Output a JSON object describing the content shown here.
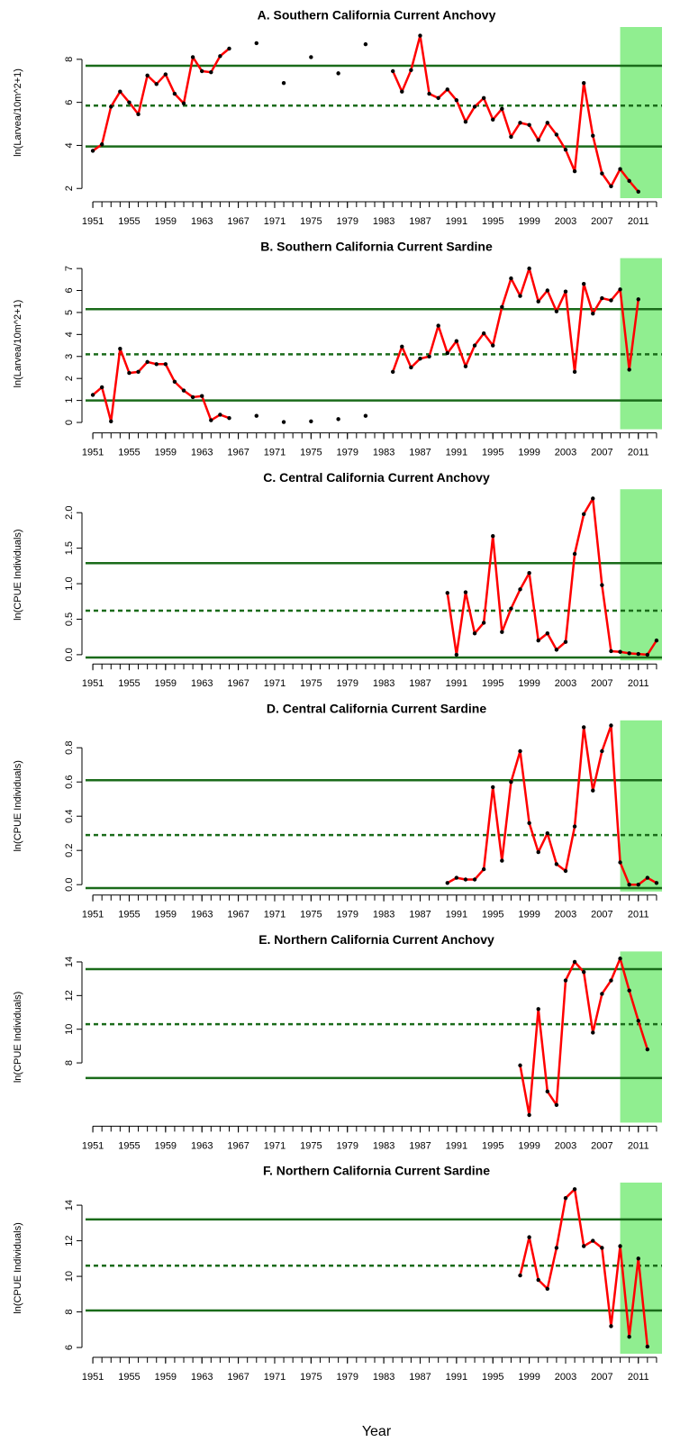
{
  "xlabel": "Year",
  "chart_data": [
    {
      "type": "line",
      "title": "A. Southern California Current Anchovy",
      "ylabel": "ln(Larvea/10m^2+1)",
      "x": [
        1951,
        1952,
        1953,
        1954,
        1955,
        1956,
        1957,
        1958,
        1959,
        1960,
        1961,
        1962,
        1963,
        1964,
        1965,
        1966,
        1967,
        1968,
        1969,
        1970,
        1971,
        1972,
        1973,
        1974,
        1975,
        1976,
        1977,
        1978,
        1979,
        1980,
        1981,
        1982,
        1983,
        1984,
        1985,
        1986,
        1987,
        1988,
        1989,
        1990,
        1991,
        1992,
        1993,
        1994,
        1995,
        1996,
        1997,
        1998,
        1999,
        2000,
        2001,
        2002,
        2003,
        2004,
        2005,
        2006,
        2007,
        2008,
        2009,
        2010,
        2011
      ],
      "values": [
        3.75,
        4.05,
        5.8,
        6.5,
        6.0,
        5.45,
        7.25,
        6.85,
        7.3,
        6.4,
        5.95,
        8.1,
        7.45,
        7.4,
        8.15,
        8.5,
        null,
        null,
        8.75,
        null,
        null,
        6.9,
        null,
        null,
        8.1,
        null,
        null,
        7.35,
        null,
        null,
        8.7,
        null,
        null,
        7.45,
        6.5,
        7.5,
        9.1,
        6.4,
        6.2,
        6.6,
        6.1,
        5.1,
        5.8,
        6.2,
        5.2,
        5.7,
        4.4,
        5.05,
        4.95,
        4.25,
        5.05,
        4.5,
        3.8,
        2.8,
        6.9,
        4.45,
        2.7,
        2.1,
        2.9,
        2.35,
        1.85
      ],
      "line_color": "#ff0000",
      "point_color": "#000000",
      "hlines": [
        {
          "value": 7.7,
          "dashed": false
        },
        {
          "value": 5.85,
          "dashed": true
        },
        {
          "value": 3.95,
          "dashed": false
        }
      ],
      "hline_color": "#1a6b1a",
      "shade_x": [
        2009,
        2013.6
      ],
      "shade_color": "#90ee90",
      "xlim": [
        1950.2,
        2013.6
      ],
      "ylim": [
        1.55,
        9.5
      ],
      "yticks": [
        2,
        4,
        6,
        8
      ],
      "xticks": [
        1951,
        1955,
        1959,
        1963,
        1967,
        1971,
        1975,
        1979,
        1983,
        1987,
        1991,
        1995,
        1999,
        2003,
        2007,
        2011
      ],
      "xminorticks": [
        1951,
        1952,
        1953,
        1954,
        1955,
        1956,
        1957,
        1958,
        1959,
        1960,
        1961,
        1962,
        1963,
        1964,
        1965,
        1966,
        1967,
        1968,
        1969,
        1970,
        1971,
        1972,
        1973,
        1974,
        1975,
        1976,
        1977,
        1978,
        1979,
        1980,
        1981,
        1982,
        1983,
        1984,
        1985,
        1986,
        1987,
        1988,
        1989,
        1990,
        1991,
        1992,
        1993,
        1994,
        1995,
        1996,
        1997,
        1998,
        1999,
        2000,
        2001,
        2002,
        2003,
        2004,
        2005,
        2006,
        2007,
        2008,
        2009,
        2010,
        2011,
        2012,
        2013
      ]
    },
    {
      "type": "line",
      "title": "B. Southern California Current Sardine",
      "ylabel": "ln(Larvea/10m^2+1)",
      "x": [
        1951,
        1952,
        1953,
        1954,
        1955,
        1956,
        1957,
        1958,
        1959,
        1960,
        1961,
        1962,
        1963,
        1964,
        1965,
        1966,
        1967,
        1968,
        1969,
        1970,
        1971,
        1972,
        1973,
        1974,
        1975,
        1976,
        1977,
        1978,
        1979,
        1980,
        1981,
        1982,
        1983,
        1984,
        1985,
        1986,
        1987,
        1988,
        1989,
        1990,
        1991,
        1992,
        1993,
        1994,
        1995,
        1996,
        1997,
        1998,
        1999,
        2000,
        2001,
        2002,
        2003,
        2004,
        2005,
        2006,
        2007,
        2008,
        2009,
        2010,
        2011
      ],
      "values": [
        1.25,
        1.6,
        0.05,
        3.35,
        2.25,
        2.3,
        2.75,
        2.65,
        2.65,
        1.85,
        1.45,
        1.15,
        1.2,
        0.1,
        0.35,
        0.2,
        null,
        null,
        0.3,
        null,
        null,
        0.02,
        null,
        null,
        0.05,
        null,
        null,
        0.15,
        null,
        null,
        0.3,
        null,
        null,
        2.3,
        3.45,
        2.5,
        2.9,
        3.0,
        4.4,
        3.15,
        3.7,
        2.55,
        3.5,
        4.05,
        3.5,
        5.25,
        6.55,
        5.75,
        7.0,
        5.5,
        6.0,
        5.05,
        5.95,
        2.3,
        6.3,
        4.95,
        5.65,
        5.55,
        6.05,
        2.4,
        5.6
      ],
      "line_color": "#ff0000",
      "point_color": "#000000",
      "hlines": [
        {
          "value": 5.15,
          "dashed": false
        },
        {
          "value": 3.1,
          "dashed": true
        },
        {
          "value": 1.0,
          "dashed": false
        }
      ],
      "hline_color": "#1a6b1a",
      "shade_x": [
        2009,
        2013.6
      ],
      "shade_color": "#90ee90",
      "xlim": [
        1950.2,
        2013.6
      ],
      "ylim": [
        -0.31,
        7.47
      ],
      "yticks": [
        0,
        1,
        2,
        3,
        4,
        5,
        6,
        7
      ],
      "xticks": [
        1951,
        1955,
        1959,
        1963,
        1967,
        1971,
        1975,
        1979,
        1983,
        1987,
        1991,
        1995,
        1999,
        2003,
        2007,
        2011
      ],
      "xminorticks": [
        1951,
        1952,
        1953,
        1954,
        1955,
        1956,
        1957,
        1958,
        1959,
        1960,
        1961,
        1962,
        1963,
        1964,
        1965,
        1966,
        1967,
        1968,
        1969,
        1970,
        1971,
        1972,
        1973,
        1974,
        1975,
        1976,
        1977,
        1978,
        1979,
        1980,
        1981,
        1982,
        1983,
        1984,
        1985,
        1986,
        1987,
        1988,
        1989,
        1990,
        1991,
        1992,
        1993,
        1994,
        1995,
        1996,
        1997,
        1998,
        1999,
        2000,
        2001,
        2002,
        2003,
        2004,
        2005,
        2006,
        2007,
        2008,
        2009,
        2010,
        2011,
        2012,
        2013
      ]
    },
    {
      "type": "line",
      "title": "C. Central California Current Anchovy",
      "ylabel": "ln(CPUE Individuals)",
      "x": [
        1990,
        1991,
        1992,
        1993,
        1994,
        1995,
        1996,
        1997,
        1998,
        1999,
        2000,
        2001,
        2002,
        2003,
        2004,
        2005,
        2006,
        2007,
        2008,
        2009,
        2010,
        2011,
        2012,
        2013
      ],
      "values": [
        0.87,
        0.0,
        0.88,
        0.3,
        0.45,
        1.67,
        0.32,
        0.65,
        0.92,
        1.15,
        0.2,
        0.3,
        0.07,
        0.18,
        1.42,
        1.98,
        2.2,
        0.98,
        0.05,
        0.04,
        0.02,
        0.01,
        0.0,
        0.2
      ],
      "line_color": "#ff0000",
      "point_color": "#000000",
      "hlines": [
        {
          "value": 1.29,
          "dashed": false
        },
        {
          "value": 0.62,
          "dashed": true
        },
        {
          "value": -0.04,
          "dashed": false
        }
      ],
      "hline_color": "#1a6b1a",
      "shade_x": [
        2009,
        2013.6
      ],
      "shade_color": "#90ee90",
      "xlim": [
        1950.2,
        2013.6
      ],
      "ylim": [
        -0.08,
        2.33
      ],
      "yticks": [
        {
          "value": 0,
          "label": "0.0"
        },
        0.5,
        {
          "value": 1,
          "label": "1.0"
        },
        1.5,
        {
          "value": 2,
          "label": "2.0"
        }
      ],
      "xticks": [
        1951,
        1955,
        1959,
        1963,
        1967,
        1971,
        1975,
        1979,
        1983,
        1987,
        1991,
        1995,
        1999,
        2003,
        2007,
        2011
      ],
      "xminorticks": [
        1951,
        1952,
        1953,
        1954,
        1955,
        1956,
        1957,
        1958,
        1959,
        1960,
        1961,
        1962,
        1963,
        1964,
        1965,
        1966,
        1967,
        1968,
        1969,
        1970,
        1971,
        1972,
        1973,
        1974,
        1975,
        1976,
        1977,
        1978,
        1979,
        1980,
        1981,
        1982,
        1983,
        1984,
        1985,
        1986,
        1987,
        1988,
        1989,
        1990,
        1991,
        1992,
        1993,
        1994,
        1995,
        1996,
        1997,
        1998,
        1999,
        2000,
        2001,
        2002,
        2003,
        2004,
        2005,
        2006,
        2007,
        2008,
        2009,
        2010,
        2011,
        2012,
        2013
      ]
    },
    {
      "type": "line",
      "title": "D. Central California Current Sardine",
      "ylabel": "ln(CPUE Individuals)",
      "x": [
        1990,
        1991,
        1992,
        1993,
        1994,
        1995,
        1996,
        1997,
        1998,
        1999,
        2000,
        2001,
        2002,
        2003,
        2004,
        2005,
        2006,
        2007,
        2008,
        2009,
        2010,
        2011,
        2012,
        2013
      ],
      "values": [
        0.01,
        0.04,
        0.03,
        0.03,
        0.09,
        0.57,
        0.14,
        0.6,
        0.78,
        0.36,
        0.19,
        0.3,
        0.12,
        0.08,
        0.34,
        0.92,
        0.55,
        0.78,
        0.93,
        0.13,
        0.0,
        0.0,
        0.04,
        0.01
      ],
      "line_color": "#ff0000",
      "point_color": "#000000",
      "hlines": [
        {
          "value": 0.61,
          "dashed": false
        },
        {
          "value": 0.29,
          "dashed": true
        },
        {
          "value": -0.02,
          "dashed": false
        }
      ],
      "hline_color": "#1a6b1a",
      "shade_x": [
        2009,
        2013.6
      ],
      "shade_color": "#90ee90",
      "xlim": [
        1950.2,
        2013.6
      ],
      "ylim": [
        -0.04,
        0.96
      ],
      "yticks": [
        {
          "value": 0,
          "label": "0.0"
        },
        0.2,
        0.4,
        0.6,
        0.8
      ],
      "xticks": [
        1951,
        1955,
        1959,
        1963,
        1967,
        1971,
        1975,
        1979,
        1983,
        1987,
        1991,
        1995,
        1999,
        2003,
        2007,
        2011
      ],
      "xminorticks": [
        1951,
        1952,
        1953,
        1954,
        1955,
        1956,
        1957,
        1958,
        1959,
        1960,
        1961,
        1962,
        1963,
        1964,
        1965,
        1966,
        1967,
        1968,
        1969,
        1970,
        1971,
        1972,
        1973,
        1974,
        1975,
        1976,
        1977,
        1978,
        1979,
        1980,
        1981,
        1982,
        1983,
        1984,
        1985,
        1986,
        1987,
        1988,
        1989,
        1990,
        1991,
        1992,
        1993,
        1994,
        1995,
        1996,
        1997,
        1998,
        1999,
        2000,
        2001,
        2002,
        2003,
        2004,
        2005,
        2006,
        2007,
        2008,
        2009,
        2010,
        2011,
        2012,
        2013
      ]
    },
    {
      "type": "line",
      "title": "E. Northern California Current Anchovy",
      "ylabel": "ln(CPUE Individuals)",
      "x": [
        1998,
        1999,
        2000,
        2001,
        2002,
        2003,
        2004,
        2005,
        2006,
        2007,
        2008,
        2009,
        2010,
        2011,
        2012
      ],
      "values": [
        7.85,
        4.9,
        11.2,
        6.3,
        5.5,
        12.9,
        14.0,
        13.4,
        9.8,
        12.1,
        12.9,
        14.2,
        12.3,
        10.5,
        8.8
      ],
      "line_color": "#ff0000",
      "point_color": "#000000",
      "hlines": [
        {
          "value": 13.57,
          "dashed": false
        },
        {
          "value": 10.3,
          "dashed": true
        },
        {
          "value": 7.1,
          "dashed": false
        }
      ],
      "hline_color": "#1a6b1a",
      "shade_x": [
        2009,
        2013.6
      ],
      "shade_color": "#90ee90",
      "xlim": [
        1950.2,
        2013.6
      ],
      "ylim": [
        4.45,
        14.62
      ],
      "yticks": [
        8,
        10,
        12,
        14
      ],
      "xticks": [
        1951,
        1955,
        1959,
        1963,
        1967,
        1971,
        1975,
        1979,
        1983,
        1987,
        1991,
        1995,
        1999,
        2003,
        2007,
        2011
      ],
      "xminorticks": [
        1951,
        1952,
        1953,
        1954,
        1955,
        1956,
        1957,
        1958,
        1959,
        1960,
        1961,
        1962,
        1963,
        1964,
        1965,
        1966,
        1967,
        1968,
        1969,
        1970,
        1971,
        1972,
        1973,
        1974,
        1975,
        1976,
        1977,
        1978,
        1979,
        1980,
        1981,
        1982,
        1983,
        1984,
        1985,
        1986,
        1987,
        1988,
        1989,
        1990,
        1991,
        1992,
        1993,
        1994,
        1995,
        1996,
        1997,
        1998,
        1999,
        2000,
        2001,
        2002,
        2003,
        2004,
        2005,
        2006,
        2007,
        2008,
        2009,
        2010,
        2011,
        2012,
        2013
      ]
    },
    {
      "type": "line",
      "title": "F. Northern California Current Sardine",
      "ylabel": "ln(CPUE Individuals)",
      "x": [
        1998,
        1999,
        2000,
        2001,
        2002,
        2003,
        2004,
        2005,
        2006,
        2007,
        2008,
        2009,
        2010,
        2011,
        2012
      ],
      "values": [
        10.05,
        12.2,
        9.8,
        9.3,
        11.6,
        14.4,
        14.9,
        11.7,
        12.0,
        11.6,
        7.2,
        11.7,
        6.6,
        11.0,
        6.05
      ],
      "line_color": "#ff0000",
      "point_color": "#000000",
      "hlines": [
        {
          "value": 13.2,
          "dashed": false
        },
        {
          "value": 10.6,
          "dashed": true
        },
        {
          "value": 8.08,
          "dashed": false
        }
      ],
      "hline_color": "#1a6b1a",
      "shade_x": [
        2009,
        2013.6
      ],
      "shade_color": "#90ee90",
      "xlim": [
        1950.2,
        2013.6
      ],
      "ylim": [
        5.65,
        15.27
      ],
      "yticks": [
        6,
        8,
        10,
        12,
        14
      ],
      "xticks": [
        1951,
        1955,
        1959,
        1963,
        1967,
        1971,
        1975,
        1979,
        1983,
        1987,
        1991,
        1995,
        1999,
        2003,
        2007,
        2011
      ],
      "xminorticks": [
        1951,
        1952,
        1953,
        1954,
        1955,
        1956,
        1957,
        1958,
        1959,
        1960,
        1961,
        1962,
        1963,
        1964,
        1965,
        1966,
        1967,
        1968,
        1969,
        1970,
        1971,
        1972,
        1973,
        1974,
        1975,
        1976,
        1977,
        1978,
        1979,
        1980,
        1981,
        1982,
        1983,
        1984,
        1985,
        1986,
        1987,
        1988,
        1989,
        1990,
        1991,
        1992,
        1993,
        1994,
        1995,
        1996,
        1997,
        1998,
        1999,
        2000,
        2001,
        2002,
        2003,
        2004,
        2005,
        2006,
        2007,
        2008,
        2009,
        2010,
        2011,
        2012,
        2013
      ]
    }
  ]
}
